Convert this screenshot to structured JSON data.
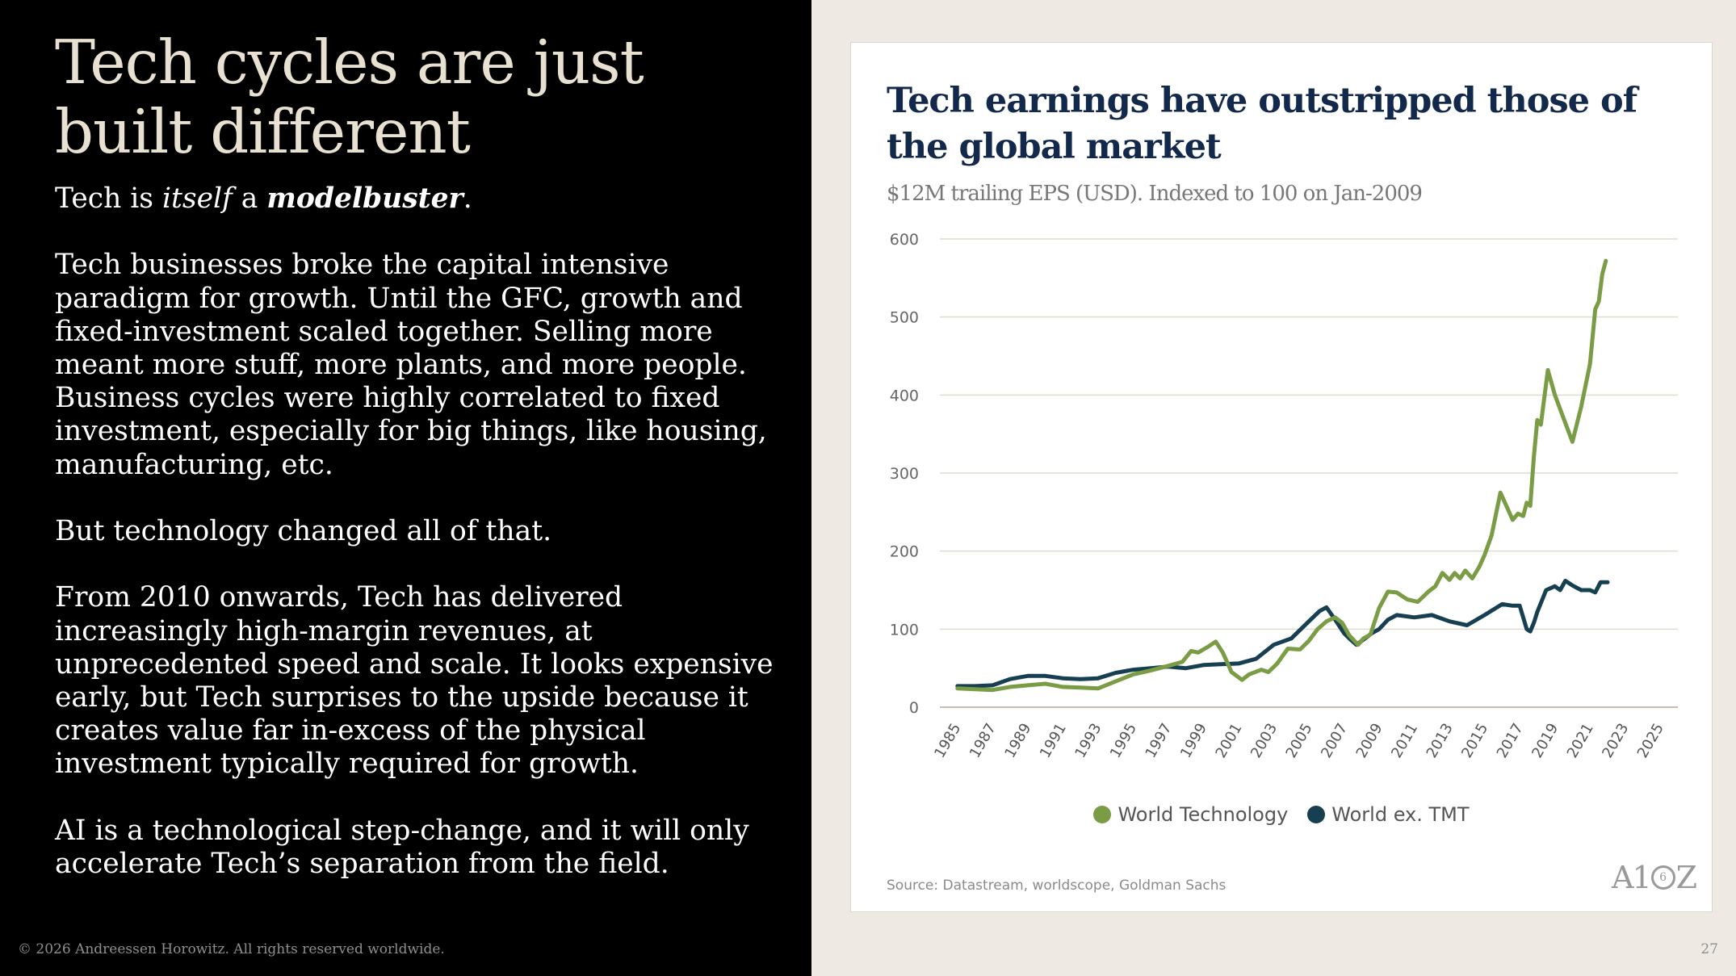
{
  "slide": {
    "title": "Tech cycles are just built different",
    "intro": {
      "a": "Tech is ",
      "b": "itself",
      "c": " a ",
      "d": "modelbuster",
      "e": "."
    },
    "paragraphs": [
      "Tech businesses broke the capital intensive paradigm for growth. Until the GFC, growth and fixed-investment scaled together. Selling more meant more stuff, more plants, and more people. Business cycles were highly correlated to fixed investment, especially for big things, like housing, manufacturing, etc.",
      "But technology changed all of that.",
      "From 2010 onwards, Tech has delivered increasingly high-margin revenues, at unprecedented speed and scale. It looks expensive early, but Tech surprises to the upside because it creates value far in-excess of the physical investment typically required for growth.",
      "AI is a technological step-change, and it will only accelerate Tech’s separation from the field."
    ],
    "footer": "© 2026 Andreessen Horowitz. All rights reserved worldwide.",
    "page_number": "27"
  },
  "source": "Source: Datastream, worldscope, Goldman Sachs",
  "logo": {
    "left": "A1",
    "mark": "6",
    "right": "Z"
  },
  "colors": {
    "world_technology": "#7a9c45",
    "world_ex_tmt": "#173f52",
    "title": "#13294b"
  },
  "chart_data": {
    "type": "line",
    "title": "Tech earnings have outstripped those of the global market",
    "subtitle": "$12M trailing EPS (USD). Indexed to 100 on Jan-2009",
    "xlabel": "",
    "ylabel": "",
    "xlim": [
      1984,
      2026
    ],
    "ylim": [
      0,
      600
    ],
    "yticks": [
      0,
      100,
      200,
      300,
      400,
      500,
      600
    ],
    "xticks": [
      "1985",
      "1987",
      "1989",
      "1991",
      "1993",
      "1995",
      "1997",
      "1999",
      "2001",
      "2003",
      "2005",
      "2007",
      "2009",
      "2011",
      "2013",
      "2015",
      "2017",
      "2019",
      "2021",
      "2023",
      "2025"
    ],
    "grid": true,
    "legend_position": "bottom-center",
    "series": [
      {
        "name": "World Technology",
        "color": "#7a9c45",
        "x": [
          1985,
          1986,
          1987,
          1988,
          1989,
          1990,
          1991,
          1992,
          1993,
          1994,
          1995,
          1996,
          1997,
          1997.8,
          1998.3,
          1998.7,
          1999.3,
          1999.7,
          2000.1,
          2000.6,
          2001.2,
          2001.6,
          2002.3,
          2002.7,
          2003.2,
          2003.8,
          2004.5,
          2005,
          2005.5,
          2006,
          2006.5,
          2006.9,
          2007.3,
          2007.8,
          2008.1,
          2008.5,
          2009,
          2009.5,
          2010,
          2010.6,
          2011.2,
          2011.8,
          2012.2,
          2012.6,
          2013,
          2013.3,
          2013.6,
          2013.9,
          2014.3,
          2014.7,
          2015,
          2015.4,
          2015.9,
          2016.3,
          2016.6,
          2016.9,
          2017.2,
          2017.4,
          2017.6,
          2017.8,
          2018,
          2018.2,
          2018.6,
          2019,
          2019.5,
          2020,
          2020.5,
          2021,
          2021.3,
          2021.5,
          2021.7,
          2021.9
        ],
        "values": [
          24,
          23,
          22,
          26,
          28,
          30,
          26,
          25,
          24,
          33,
          42,
          47,
          53,
          58,
          72,
          70,
          78,
          84,
          70,
          45,
          35,
          42,
          48,
          45,
          56,
          75,
          74,
          85,
          100,
          110,
          115,
          108,
          92,
          80,
          88,
          93,
          127,
          148,
          147,
          138,
          135,
          148,
          155,
          172,
          163,
          172,
          165,
          175,
          165,
          180,
          195,
          220,
          275,
          255,
          240,
          248,
          245,
          262,
          258,
          320,
          368,
          362,
          432,
          400,
          370,
          340,
          385,
          440,
          510,
          520,
          555,
          572
        ]
      },
      {
        "name": "World ex. TMT",
        "color": "#173f52",
        "x": [
          1985,
          1986,
          1987,
          1988,
          1989,
          1990,
          1991,
          1992,
          1993,
          1994,
          1995,
          1996,
          1997,
          1998,
          1999,
          2000,
          2001,
          2002,
          2003,
          2004,
          2005,
          2005.6,
          2006,
          2006.5,
          2007,
          2007.3,
          2007.7,
          2008.2,
          2008.6,
          2009,
          2009.5,
          2010,
          2011,
          2012,
          2013,
          2014,
          2015,
          2016,
          2016.6,
          2017,
          2017.4,
          2017.6,
          2017.8,
          2018,
          2018.5,
          2019,
          2019.3,
          2019.6,
          2020,
          2020.5,
          2021,
          2021.3,
          2021.6,
          2022
        ],
        "values": [
          27,
          27,
          28,
          36,
          40,
          40,
          37,
          36,
          37,
          44,
          48,
          50,
          52,
          50,
          54,
          55,
          56,
          62,
          80,
          88,
          110,
          123,
          128,
          112,
          95,
          88,
          80,
          88,
          95,
          100,
          112,
          118,
          115,
          118,
          110,
          105,
          118,
          132,
          130,
          130,
          100,
          97,
          108,
          122,
          150,
          155,
          150,
          162,
          156,
          150,
          150,
          147,
          160,
          160
        ]
      }
    ]
  }
}
